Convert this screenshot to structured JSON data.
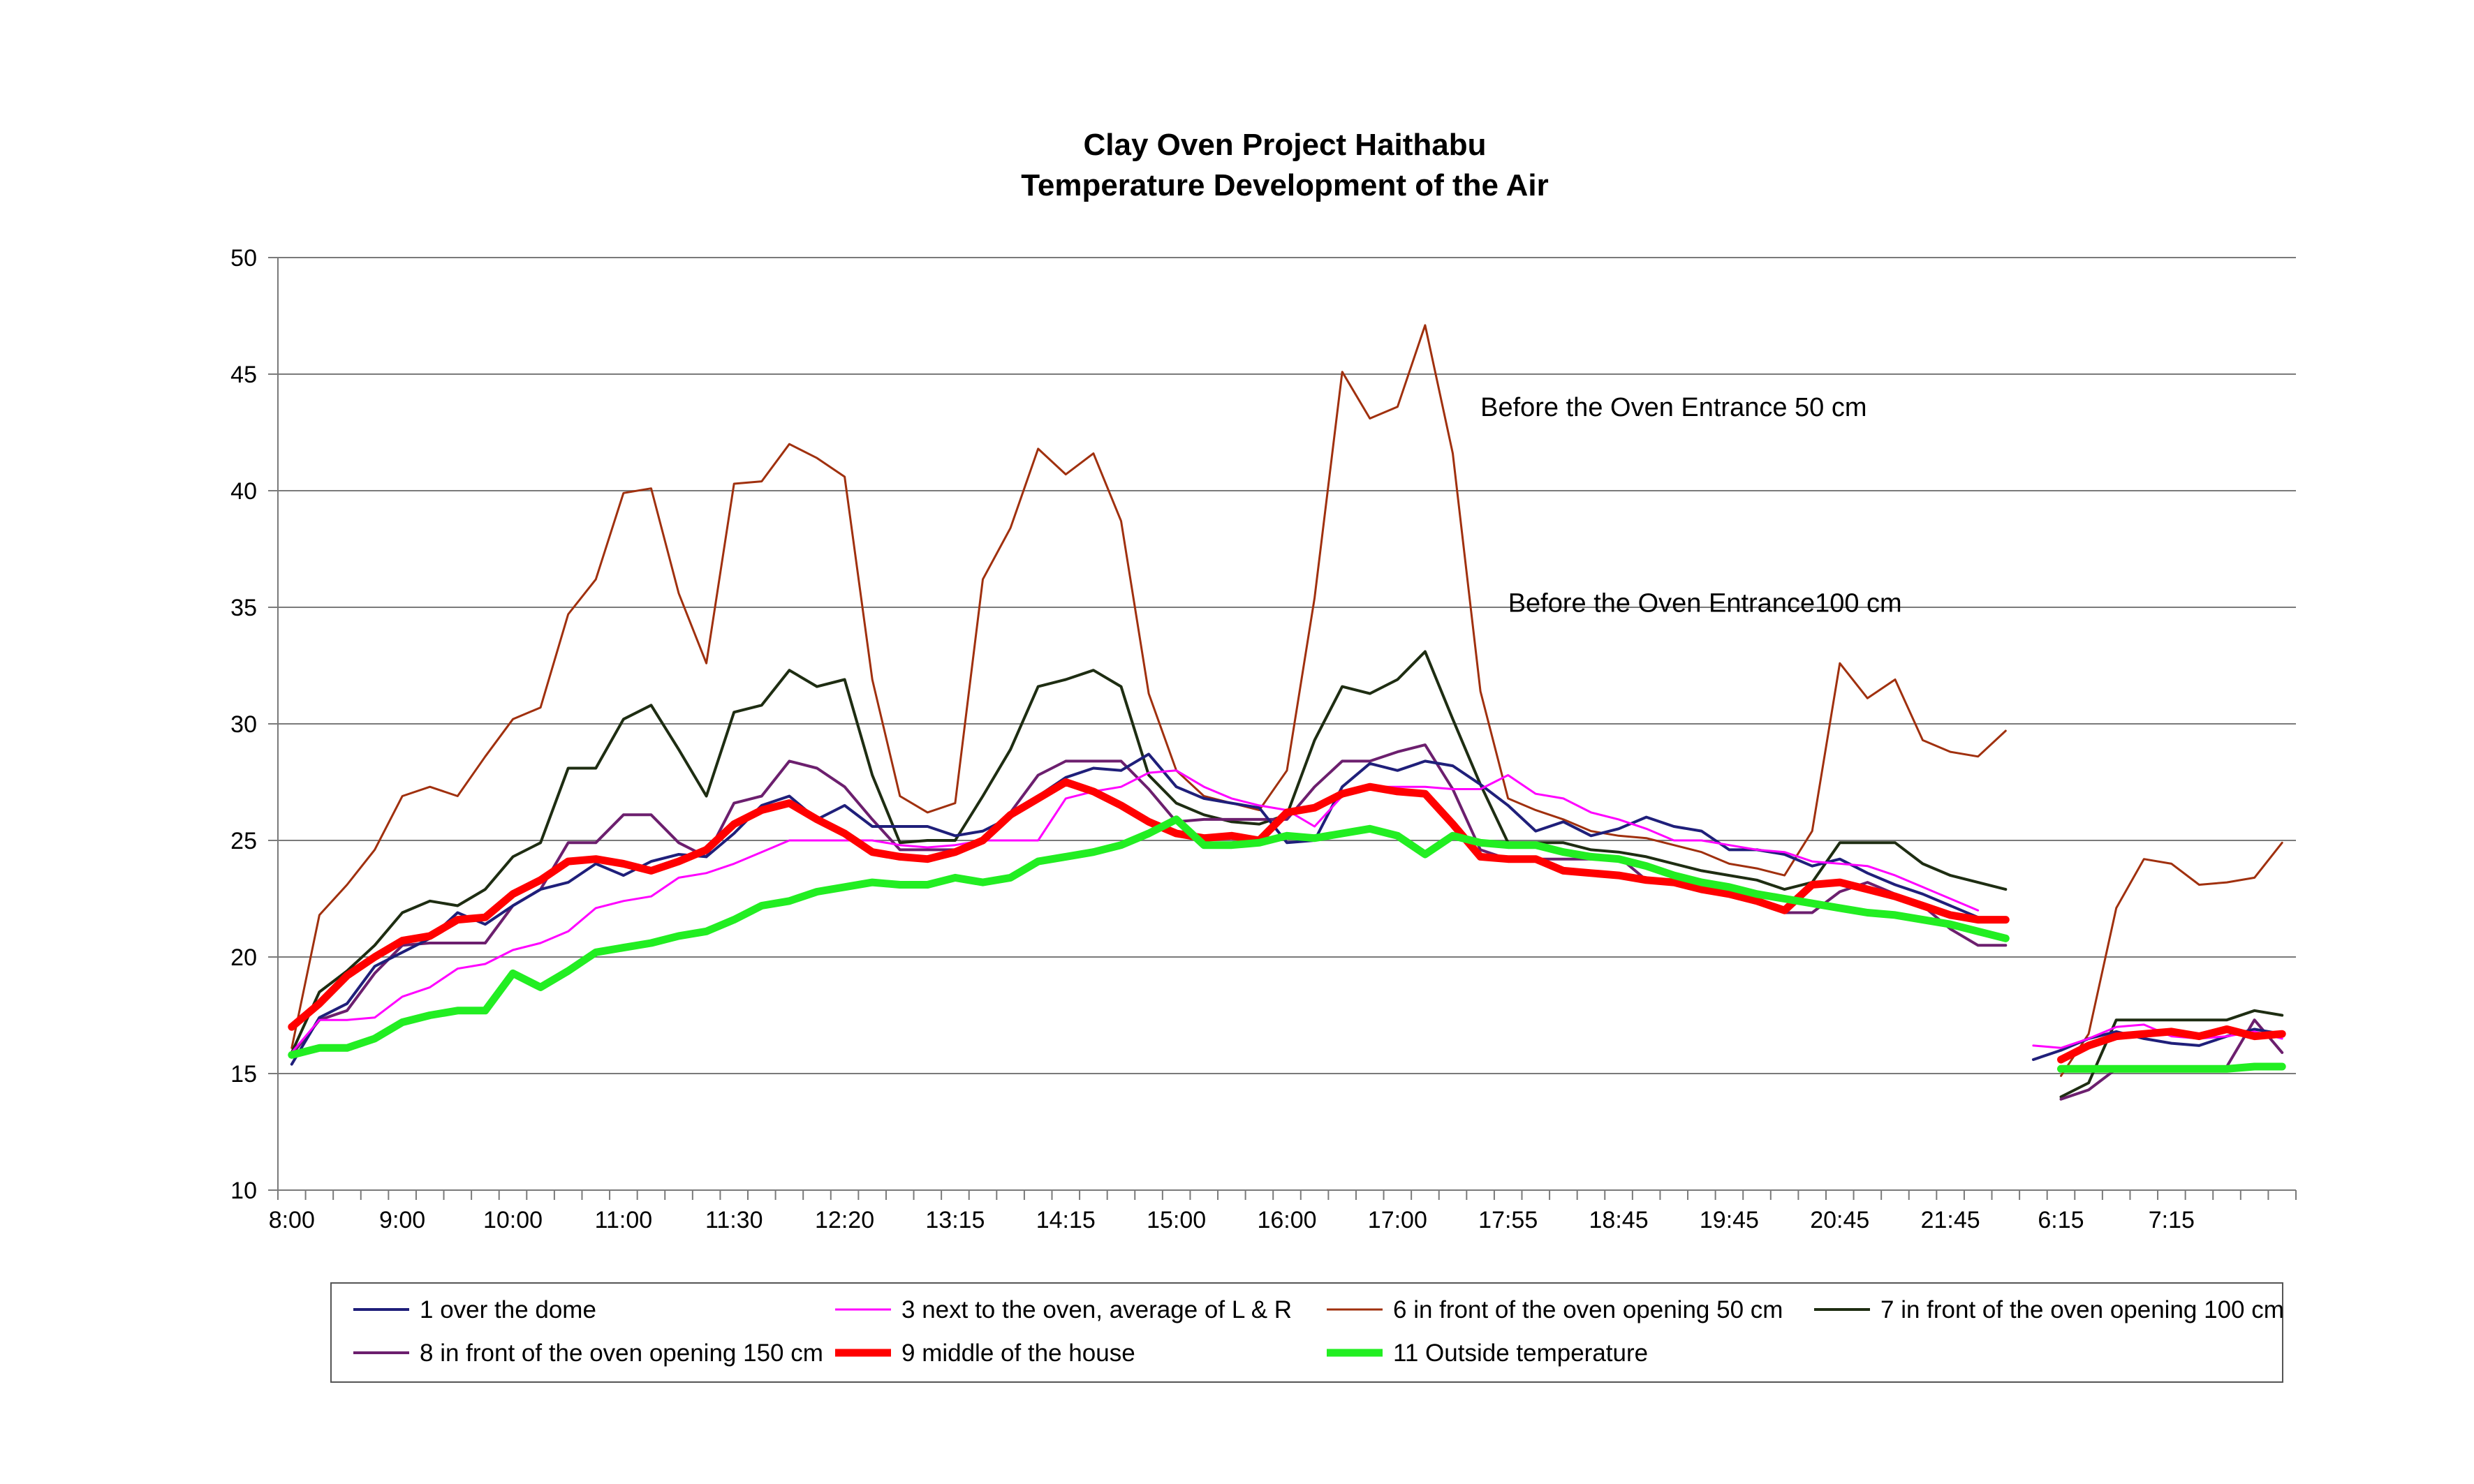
{
  "chart_data": {
    "type": "line",
    "title": "Clay Oven Project Haithabu",
    "subtitle": "Temperature Development of the Air",
    "ylim": [
      10,
      50
    ],
    "yticks": [
      10,
      15,
      20,
      25,
      30,
      35,
      40,
      45,
      50
    ],
    "grid": true,
    "legend_position": "bottom",
    "x_tick_labels": [
      "8:00",
      "9:00",
      "10:00",
      "11:00",
      "11:30",
      "12:20",
      "13:15",
      "14:15",
      "15:00",
      "16:00",
      "17:00",
      "17:55",
      "18:45",
      "19:45",
      "20:45",
      "21:45",
      "6:15",
      "7:15"
    ],
    "x_tick_label_indices": [
      0,
      4,
      8,
      12,
      16,
      20,
      24,
      28,
      32,
      36,
      40,
      44,
      48,
      52,
      56,
      60,
      64,
      68
    ],
    "num_slots": 73,
    "segments": [
      {
        "start": 0,
        "end": 62
      },
      {
        "start": 63,
        "end": 72
      }
    ],
    "annotations": [
      {
        "text": "Before the Oven Entrance 50 cm",
        "x_index": 43,
        "y": 43.2
      },
      {
        "text": "Before the Oven Entrance100 cm",
        "x_index": 44,
        "y": 34.8
      }
    ],
    "series": [
      {
        "name": "1 over the dome",
        "color": "#1f1f7a",
        "width": 4,
        "values": [
          15.4,
          17.4,
          18,
          19.6,
          20.2,
          20.8,
          21.9,
          21.4,
          22.2,
          22.9,
          23.2,
          24,
          23.5,
          24.1,
          24.4,
          24.3,
          25.3,
          26.5,
          26.9,
          25.9,
          26.5,
          25.6,
          25.6,
          25.6,
          25.2,
          25.4,
          26,
          26.9,
          27.7,
          28.1,
          28,
          28.7,
          27.3,
          26.8,
          26.6,
          26.4,
          24.9,
          25,
          27.3,
          28.3,
          28,
          28.4,
          28.2,
          27.4,
          26.5,
          25.4,
          25.8,
          25.2,
          25.5,
          26,
          25.6,
          25.4,
          24.6,
          24.6,
          24.4,
          23.9,
          24.2,
          23.6,
          23.1,
          22.7,
          22.2,
          21.7,
          null,
          15.6,
          16,
          16.5,
          16.8,
          16.5,
          16.3,
          16.2,
          16.6,
          16.9,
          16.7
        ]
      },
      {
        "name": "3 next to the oven, average of L & R",
        "color": "#ff00ff",
        "width": 3,
        "values": [
          15.9,
          17.3,
          17.3,
          17.4,
          18.3,
          18.7,
          19.5,
          19.7,
          20.3,
          20.6,
          21.1,
          22.1,
          22.4,
          22.6,
          23.4,
          23.6,
          24,
          24.5,
          25,
          25,
          25,
          25,
          24.8,
          24.7,
          24.8,
          25,
          25,
          25,
          26.8,
          27.1,
          27.3,
          27.9,
          28,
          27.3,
          26.8,
          26.5,
          26.3,
          25.6,
          26.9,
          27.3,
          27.3,
          27.3,
          27.2,
          27.2,
          27.8,
          27,
          26.8,
          26.2,
          25.9,
          25.5,
          25,
          25,
          24.8,
          24.6,
          24.5,
          24.1,
          24,
          23.9,
          23.5,
          23,
          22.5,
          22,
          null,
          16.2,
          16.1,
          16.5,
          17,
          17.1,
          16.6,
          16.5,
          16.6,
          16.8,
          16.5
        ]
      },
      {
        "name": "6 in front of the oven opening 50 cm",
        "color": "#a0300e",
        "width": 3,
        "values": [
          16.1,
          21.8,
          23.1,
          24.6,
          26.9,
          27.3,
          26.9,
          28.6,
          30.2,
          30.7,
          34.7,
          36.2,
          39.9,
          40.1,
          35.6,
          32.6,
          40.3,
          40.4,
          42,
          41.4,
          40.6,
          31.9,
          26.9,
          26.2,
          26.6,
          36.2,
          38.4,
          41.8,
          40.7,
          41.6,
          38.7,
          31.3,
          28,
          26.9,
          26.6,
          26.3,
          28,
          35.4,
          45.1,
          43.1,
          43.6,
          47.1,
          41.6,
          31.4,
          26.8,
          26.3,
          25.9,
          25.4,
          25.2,
          25.1,
          24.8,
          24.5,
          24,
          23.8,
          23.5,
          25.4,
          32.6,
          31.1,
          31.9,
          29.3,
          28.8,
          28.6,
          29.7,
          null,
          14.9,
          16.7,
          22.1,
          24.2,
          24,
          23.1,
          23.2,
          23.4,
          24.9
        ]
      },
      {
        "name": "7 in front of the oven opening 100 cm",
        "color": "#1e2d12",
        "width": 4,
        "values": [
          15.9,
          18.5,
          19.4,
          20.5,
          21.9,
          22.4,
          22.2,
          22.9,
          24.3,
          24.9,
          28.1,
          28.1,
          30.2,
          30.8,
          28.9,
          26.9,
          30.5,
          30.8,
          32.3,
          31.6,
          31.9,
          27.8,
          24.9,
          25,
          25,
          26.9,
          28.9,
          31.6,
          31.9,
          32.3,
          31.6,
          27.8,
          26.6,
          26.1,
          25.8,
          25.7,
          26.1,
          29.3,
          31.6,
          31.3,
          31.9,
          33.1,
          30.2,
          27.4,
          24.9,
          24.9,
          24.9,
          24.6,
          24.5,
          24.3,
          24,
          23.7,
          23.5,
          23.3,
          22.9,
          23.2,
          24.9,
          24.9,
          24.9,
          24,
          23.5,
          23.2,
          22.9,
          null,
          14,
          14.6,
          17.3,
          17.3,
          17.3,
          17.3,
          17.3,
          17.7,
          17.5
        ]
      },
      {
        "name": "8 in front of the oven opening 150 cm",
        "color": "#6c1f6e",
        "width": 4,
        "values": [
          15.8,
          17.3,
          17.7,
          19.3,
          20.5,
          20.6,
          20.6,
          20.6,
          22.2,
          22.9,
          24.9,
          24.9,
          26.1,
          26.1,
          24.9,
          24.3,
          26.6,
          26.9,
          28.4,
          28.1,
          27.3,
          25.9,
          24.6,
          24.6,
          24.6,
          25,
          26.2,
          27.8,
          28.4,
          28.4,
          28.4,
          27.2,
          25.8,
          25.9,
          25.9,
          25.9,
          25.9,
          27.3,
          28.4,
          28.4,
          28.8,
          29.1,
          27.2,
          24.6,
          24.2,
          24.2,
          24.2,
          24.2,
          24.3,
          23.3,
          23.3,
          22.8,
          22.8,
          22.5,
          21.9,
          21.9,
          22.8,
          23.2,
          22.7,
          22.2,
          21.2,
          20.5,
          20.5,
          null,
          13.9,
          14.3,
          15.2,
          15.3,
          15.3,
          15.3,
          15.3,
          17.3,
          15.9
        ]
      },
      {
        "name": "9 middle of the house",
        "color": "#ff0000",
        "width": 11,
        "values": [
          17,
          18,
          19.2,
          20,
          20.7,
          20.9,
          21.6,
          21.7,
          22.7,
          23.3,
          24.1,
          24.2,
          24,
          23.7,
          24.1,
          24.6,
          25.7,
          26.3,
          26.6,
          25.9,
          25.3,
          24.5,
          24.3,
          24.2,
          24.5,
          25,
          26.1,
          26.8,
          27.5,
          27.1,
          26.5,
          25.8,
          25.3,
          25.1,
          25.2,
          25,
          26.2,
          26.4,
          27,
          27.3,
          27.1,
          27,
          25.7,
          24.3,
          24.2,
          24.2,
          23.7,
          23.6,
          23.5,
          23.3,
          23.2,
          22.9,
          22.7,
          22.4,
          22,
          23.1,
          23.2,
          22.9,
          22.6,
          22.2,
          21.8,
          21.6,
          21.6,
          null,
          15.6,
          16.2,
          16.6,
          16.7,
          16.8,
          16.6,
          16.9,
          16.6,
          16.7
        ]
      },
      {
        "name": "11 Outside temperature",
        "color": "#22ee22",
        "width": 11,
        "values": [
          15.8,
          16.1,
          16.1,
          16.5,
          17.2,
          17.5,
          17.7,
          17.7,
          19.3,
          18.7,
          19.4,
          20.2,
          20.4,
          20.6,
          20.9,
          21.1,
          21.6,
          22.2,
          22.4,
          22.8,
          23,
          23.2,
          23.1,
          23.1,
          23.4,
          23.2,
          23.4,
          24.1,
          24.3,
          24.5,
          24.8,
          25.3,
          25.9,
          24.8,
          24.8,
          24.9,
          25.2,
          25.1,
          25.3,
          25.5,
          25.2,
          24.4,
          25.2,
          24.9,
          24.8,
          24.8,
          24.5,
          24.3,
          24.2,
          23.9,
          23.5,
          23.2,
          23,
          22.7,
          22.5,
          22.3,
          22.1,
          21.9,
          21.8,
          21.6,
          21.4,
          21.1,
          20.8,
          null,
          15.2,
          15.2,
          15.2,
          15.2,
          15.2,
          15.2,
          15.2,
          15.3,
          15.3
        ]
      }
    ],
    "legend_rows": [
      [
        0,
        1,
        2,
        3
      ],
      [
        4,
        5,
        6
      ]
    ]
  }
}
